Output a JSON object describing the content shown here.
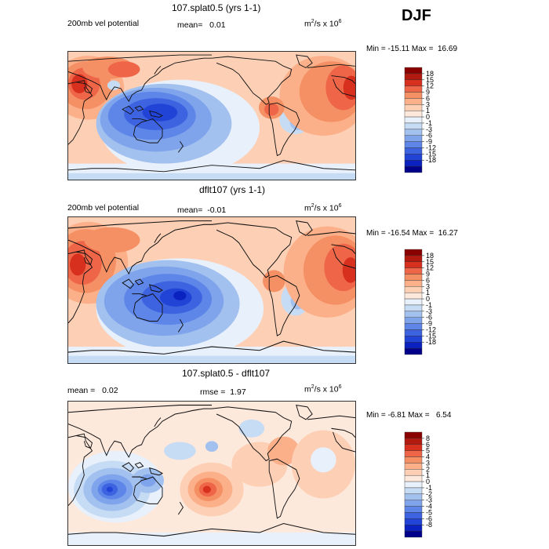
{
  "header": {
    "season": "DJF"
  },
  "colors": {
    "warm": [
      "#8b0000",
      "#b21a10",
      "#d7301f",
      "#ef6548",
      "#f58f64",
      "#fcb08a",
      "#fdd0b6",
      "#fde8dc"
    ],
    "cool": [
      "#e8f0fb",
      "#c6dbf4",
      "#a3c1ef",
      "#7fa4ec",
      "#5d86e8",
      "#3d63e0",
      "#2143d6",
      "#0a22c0",
      "#00008b"
    ],
    "coast": "#111111"
  },
  "chart_data": [
    {
      "type": "contour-map",
      "title": "107.splat0.5 (yrs 1-1)",
      "left_label": "200mb vel potential",
      "mean_label": "mean=",
      "mean_value": "0.01",
      "units_base": "m",
      "units_exp_a": "2",
      "units_mid": "/s x 10",
      "units_exp_b": "6",
      "min_label": "Min =",
      "min_value": "-15.11",
      "max_label": "Max =",
      "max_value": "16.69",
      "colorbar_levels": [
        "18",
        "15",
        "12",
        "9",
        "6",
        "3",
        "1",
        "0",
        "-1",
        "-3",
        "-6",
        "-9",
        "-12",
        "-15",
        "-18"
      ]
    },
    {
      "type": "contour-map",
      "title": "dflt107 (yrs 1-1)",
      "left_label": "200mb vel potential",
      "mean_label": "mean=",
      "mean_value": "-0.01",
      "units_base": "m",
      "units_exp_a": "2",
      "units_mid": "/s x 10",
      "units_exp_b": "6",
      "min_label": "Min =",
      "min_value": "-16.54",
      "max_label": "Max =",
      "max_value": "16.27",
      "colorbar_levels": [
        "18",
        "15",
        "12",
        "9",
        "6",
        "3",
        "1",
        "0",
        "-1",
        "-3",
        "-6",
        "-9",
        "-12",
        "-15",
        "-18"
      ]
    },
    {
      "type": "contour-map",
      "title": "107.splat0.5 - dflt107",
      "mean_label": "mean =",
      "mean_value": "0.02",
      "rmse_label": "rmse =",
      "rmse_value": "1.97",
      "units_base": "m",
      "units_exp_a": "2",
      "units_mid": "/s x 10",
      "units_exp_b": "6",
      "min_label": "Min =",
      "min_value": "-6.81",
      "max_label": "Max =",
      "max_value": "6.54",
      "colorbar_levels": [
        "8",
        "6",
        "5",
        "4",
        "3",
        "2",
        "1",
        "0",
        "-1",
        "-2",
        "-3",
        "-4",
        "-5",
        "-6",
        "-8"
      ]
    }
  ]
}
